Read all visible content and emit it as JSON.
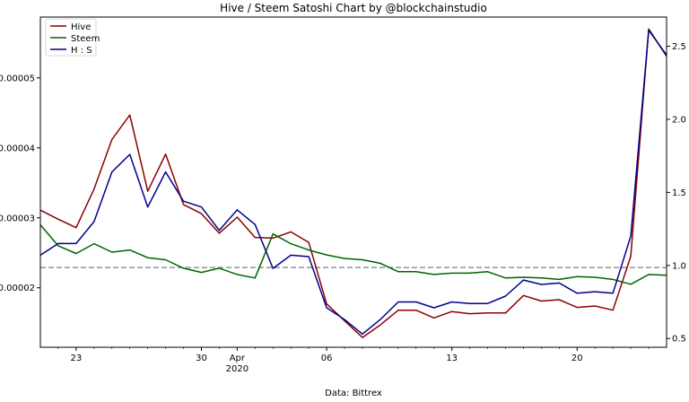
{
  "chart_data": {
    "type": "line",
    "title": "Hive / Steem Satoshi Chart by @blockchainstudio",
    "xlabel": "Data: Bittrex",
    "x_tick_labels": [
      "23",
      "30",
      "Apr\n2020",
      "06",
      "13",
      "20"
    ],
    "x_tick_days": [
      23,
      30,
      32,
      37,
      44,
      51
    ],
    "x": [
      21,
      22,
      23,
      24,
      25,
      26,
      27,
      28,
      29,
      30,
      31,
      32,
      33,
      34,
      35,
      36,
      37,
      38,
      39,
      40,
      41,
      42,
      43,
      44,
      45,
      46,
      47,
      48,
      49,
      50,
      51,
      52,
      53,
      54,
      55,
      56
    ],
    "left_axis": {
      "ylim": [
        1.15e-05,
        5.87e-05
      ],
      "ticks": [
        2e-05,
        3e-05,
        4e-05,
        5e-05
      ],
      "tick_labels": [
        "0.00002",
        "0.00003",
        "0.00004",
        "0.00005"
      ]
    },
    "right_axis": {
      "ylim": [
        0.44,
        2.7
      ],
      "ticks": [
        0.5,
        1.0,
        1.5,
        2.0,
        2.5
      ],
      "tick_labels": [
        "0.5",
        "1.0",
        "1.5",
        "2.0",
        "2.5"
      ]
    },
    "reference_line": {
      "axis": "left",
      "value": 2.29e-05,
      "style": "dashed",
      "color": "#7f7f7f"
    },
    "series": [
      {
        "name": "Hive",
        "axis": "left",
        "color": "#8b0000",
        "values": [
          3.11e-05,
          2.98e-05,
          2.86e-05,
          3.41e-05,
          4.12e-05,
          4.47e-05,
          3.38e-05,
          3.91e-05,
          3.19e-05,
          3.06e-05,
          2.78e-05,
          3.01e-05,
          2.72e-05,
          2.71e-05,
          2.8e-05,
          2.65e-05,
          1.77e-05,
          1.53e-05,
          1.29e-05,
          1.47e-05,
          1.68e-05,
          1.68e-05,
          1.57e-05,
          1.66e-05,
          1.63e-05,
          1.64e-05,
          1.64e-05,
          1.89e-05,
          1.81e-05,
          1.83e-05,
          1.72e-05,
          1.74e-05,
          1.68e-05,
          2.45e-05,
          5.7e-05,
          5.31e-05
        ]
      },
      {
        "name": "Steem",
        "axis": "left",
        "color": "#006400",
        "values": [
          2.9e-05,
          2.6e-05,
          2.49e-05,
          2.63e-05,
          2.51e-05,
          2.54e-05,
          2.43e-05,
          2.4e-05,
          2.28e-05,
          2.22e-05,
          2.28e-05,
          2.19e-05,
          2.14e-05,
          2.77e-05,
          2.63e-05,
          2.54e-05,
          2.47e-05,
          2.42e-05,
          2.4e-05,
          2.35e-05,
          2.23e-05,
          2.23e-05,
          2.19e-05,
          2.21e-05,
          2.21e-05,
          2.23e-05,
          2.14e-05,
          2.15e-05,
          2.14e-05,
          2.12e-05,
          2.16e-05,
          2.15e-05,
          2.12e-05,
          2.05e-05,
          2.19e-05,
          2.18e-05
        ]
      },
      {
        "name": "H : S",
        "axis": "right",
        "color": "#00008b",
        "values": [
          1.07,
          1.15,
          1.15,
          1.3,
          1.64,
          1.76,
          1.4,
          1.64,
          1.44,
          1.4,
          1.24,
          1.38,
          1.28,
          0.98,
          1.07,
          1.06,
          0.71,
          0.63,
          0.53,
          0.63,
          0.75,
          0.75,
          0.71,
          0.75,
          0.74,
          0.74,
          0.79,
          0.9,
          0.87,
          0.88,
          0.81,
          0.82,
          0.81,
          1.2,
          2.61,
          2.44
        ]
      }
    ],
    "legend": {
      "placement": "upper-left"
    },
    "grid": false
  }
}
